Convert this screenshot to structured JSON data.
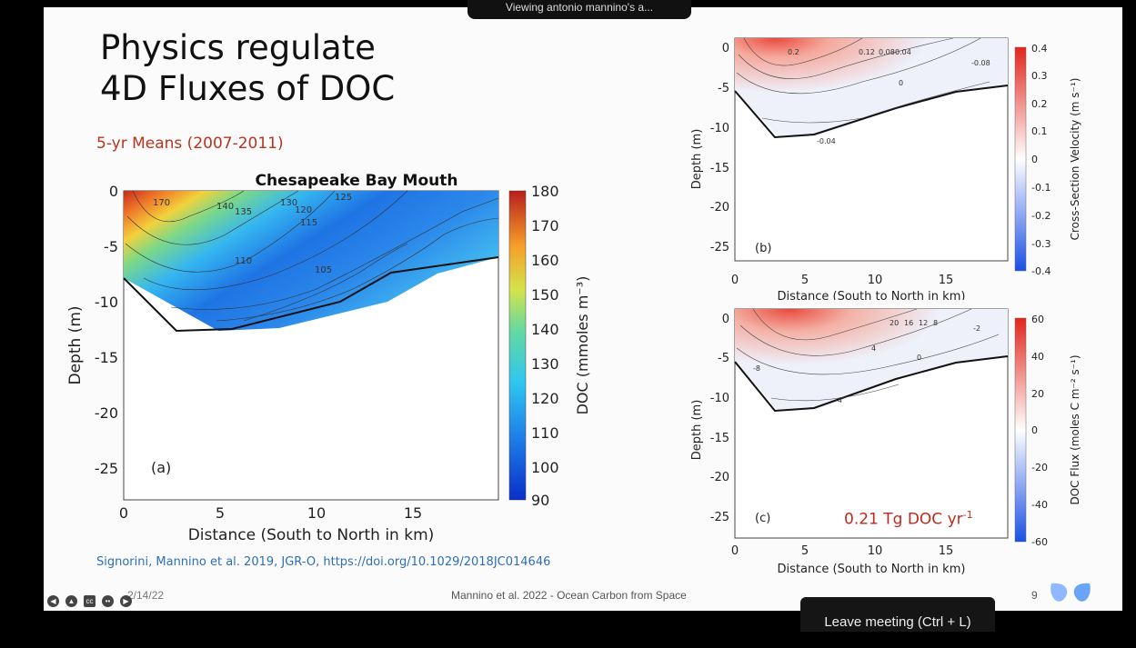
{
  "meeting": {
    "tooltip": "Viewing antonio mannino's a...",
    "leave_button": "Leave meeting (Ctrl + L)"
  },
  "slide": {
    "title_line1": "Physics regulate",
    "title_line2": "4D Fluxes of DOC",
    "subtitle": "5-yr Means (2007-2011)",
    "citation": "Signorini, Mannino et al. 2019, JGR-O, https://doi.org/10.1029/2018JC014646",
    "date": "2/14/22",
    "footer": "Mannino et al. 2022 - Ocean Carbon from Space",
    "page_number": "9",
    "flux_total": "0.21 Tg DOC yr",
    "flux_total_exp": "-1"
  },
  "colors": {
    "accent_red": "#b8341f",
    "link_blue": "#2d6fb3"
  },
  "chart_data": [
    {
      "type": "heatmap",
      "title": "Chesapeake Bay Mouth",
      "panel": "(a)",
      "xlabel": "Distance (South to North in km)",
      "ylabel": "Depth (m)",
      "colorbar_label": "DOC (mmoles m⁻³)",
      "xticks": [
        0,
        5,
        10,
        15
      ],
      "yticks": [
        0,
        -5,
        -10,
        -15,
        -20,
        -25
      ],
      "xlim": [
        0,
        19.5
      ],
      "ylim": [
        -28,
        0
      ],
      "colorbar_ticks": [
        90,
        100,
        110,
        120,
        130,
        140,
        150,
        160,
        170,
        180
      ],
      "colorbar_range": [
        90,
        180
      ],
      "contour_labels": [
        "170",
        "135",
        "140",
        "130",
        "125",
        "120",
        "115",
        "110",
        "105"
      ],
      "bottom_profile": [
        [
          0,
          -8
        ],
        [
          2.7,
          -12.5
        ],
        [
          5.7,
          -12.3
        ],
        [
          11.2,
          -10
        ],
        [
          14,
          -7.2
        ],
        [
          19.5,
          -6
        ]
      ]
    },
    {
      "type": "heatmap",
      "panel": "(b)",
      "xlabel": "Distance (South to North in km)",
      "ylabel": "Depth (m)",
      "colorbar_label": "Cross-Section Velocity (m s⁻¹)",
      "xticks": [
        0,
        5,
        10,
        15
      ],
      "yticks": [
        0,
        -5,
        -10,
        -15,
        -20,
        -25
      ],
      "colorbar_ticks": [
        0.4,
        0.3,
        0.2,
        0.1,
        0,
        -0.1,
        -0.2,
        -0.3,
        -0.4
      ],
      "colorbar_range": [
        -0.4,
        0.4
      ],
      "contour_labels": [
        "0.2",
        "0.12",
        "0.08",
        "0.04",
        "0",
        "-0.04",
        "-0.08"
      ]
    },
    {
      "type": "heatmap",
      "panel": "(c)",
      "xlabel": "Distance (South to North in km)",
      "ylabel": "Depth (m)",
      "colorbar_label": "DOC Flux (moles C m⁻² s⁻¹)",
      "xticks": [
        0,
        5,
        10,
        15
      ],
      "yticks": [
        0,
        -5,
        -10,
        -15,
        -20,
        -25
      ],
      "colorbar_ticks": [
        60,
        40,
        20,
        0,
        -20,
        -40,
        -60
      ],
      "colorbar_range": [
        -60,
        60
      ],
      "contour_labels": [
        "20",
        "16",
        "12",
        "8",
        "4",
        "0",
        "-2",
        "-4",
        "-8"
      ]
    }
  ]
}
